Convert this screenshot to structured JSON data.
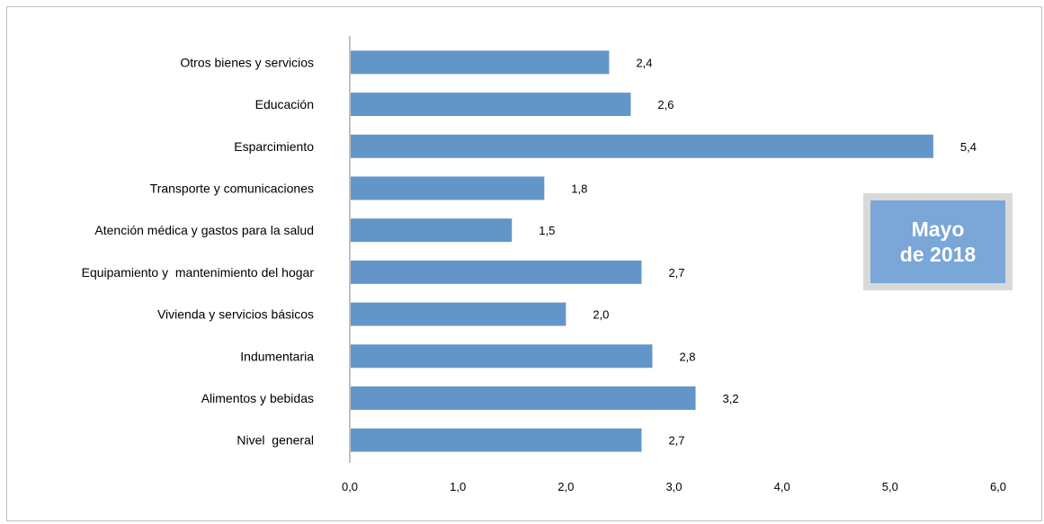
{
  "chart_data": {
    "type": "bar",
    "orientation": "horizontal",
    "categories": [
      "Nivel  general",
      "Alimentos y bebidas",
      "Indumentaria",
      "Vivienda y servicios básicos",
      "Equipamiento y  mantenimiento del hogar",
      "Atención médica y gastos para la salud",
      "Transporte y comunicaciones",
      "Esparcimiento",
      "Educación",
      "Otros bienes y servicios"
    ],
    "values": [
      2.7,
      3.2,
      2.8,
      2.0,
      2.7,
      1.5,
      1.8,
      5.4,
      2.6,
      2.4
    ],
    "value_labels": [
      "2,7",
      "3,2",
      "2,8",
      "2,0",
      "2,7",
      "1,5",
      "1,8",
      "5,4",
      "2,6",
      "2,4"
    ],
    "xlim": [
      0,
      6
    ],
    "x_ticks": [
      "0,0",
      "1,0",
      "2,0",
      "3,0",
      "4,0",
      "5,0",
      "6,0"
    ],
    "grid": false,
    "bar_color": "#6296c8"
  },
  "badge": {
    "line1": "Mayo",
    "line2": "de 2018",
    "color": "#7aa6d8"
  }
}
